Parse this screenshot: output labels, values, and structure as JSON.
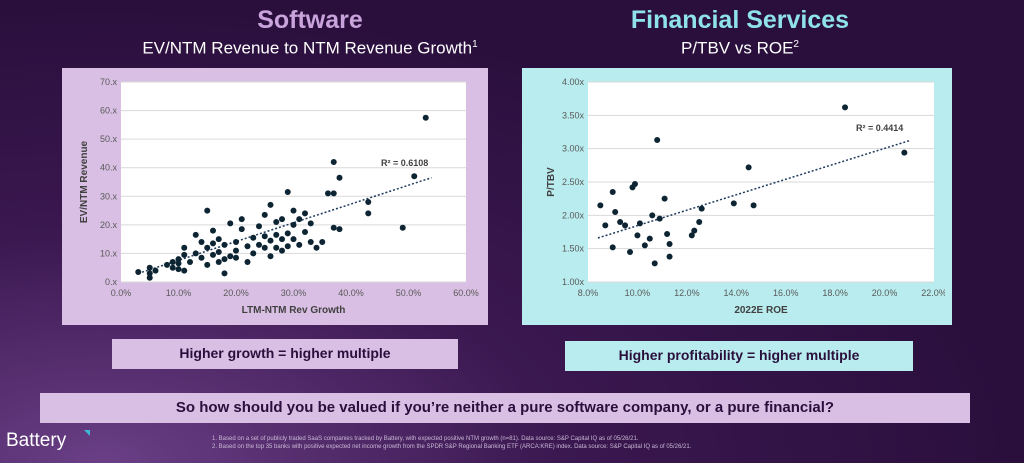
{
  "software": {
    "title": "Software",
    "subtitle": "EV/NTM Revenue to NTM Revenue Growth",
    "footnote_mark": "1",
    "callout": "Higher growth = higher multiple"
  },
  "financial": {
    "title": "Financial Services",
    "subtitle": "P/TBV vs ROE",
    "footnote_mark": "2",
    "callout": "Higher profitability = higher multiple"
  },
  "question": "So how should you be valued if you’re neither a pure software company, or a pure financial?",
  "logo": "Battery",
  "footnotes": [
    "1. Based on a set of publicly traded SaaS companies tracked by Battery, with expected positive NTM growth (n=81). Data source: S&P Capital IQ as of 05/26/21.",
    "2. Based on the top 35 banks with positive expected net income growth from the SPDR S&P Regional Banking ETF (ARCA:KRE) index. Data source: S&P Capital IQ as of 05/26/21."
  ],
  "colors": {
    "software_accent": "#c9a3db",
    "financial_accent": "#8fe3e8",
    "background": "#2a0f3d",
    "marker": "#0d2433"
  },
  "chart_data": [
    {
      "type": "scatter",
      "xlabel": "LTM-NTM Rev Growth",
      "ylabel": "EV/NTM Revenue",
      "xlim": [
        0,
        0.6
      ],
      "ylim": [
        0,
        70
      ],
      "xticks": [
        "0.0%",
        "10.0%",
        "20.0%",
        "30.0%",
        "40.0%",
        "50.0%",
        "60.0%"
      ],
      "yticks": [
        "0.x",
        "10.x",
        "20.x",
        "30.x",
        "40.x",
        "50.x",
        "60.x",
        "70.x"
      ],
      "r2_label": "R² = 0.6108",
      "trendline": {
        "x": [
          0.03,
          0.54
        ],
        "y": [
          3.0,
          36.5
        ]
      },
      "grid": true,
      "x": [
        0.03,
        0.05,
        0.05,
        0.05,
        0.06,
        0.08,
        0.09,
        0.09,
        0.1,
        0.1,
        0.1,
        0.11,
        0.11,
        0.11,
        0.12,
        0.13,
        0.13,
        0.14,
        0.14,
        0.15,
        0.15,
        0.15,
        0.16,
        0.16,
        0.16,
        0.17,
        0.17,
        0.17,
        0.18,
        0.18,
        0.18,
        0.19,
        0.19,
        0.2,
        0.2,
        0.2,
        0.21,
        0.21,
        0.22,
        0.22,
        0.23,
        0.23,
        0.24,
        0.24,
        0.25,
        0.25,
        0.25,
        0.26,
        0.26,
        0.26,
        0.27,
        0.27,
        0.27,
        0.28,
        0.28,
        0.28,
        0.29,
        0.29,
        0.29,
        0.3,
        0.3,
        0.3,
        0.31,
        0.31,
        0.32,
        0.32,
        0.33,
        0.33,
        0.34,
        0.35,
        0.36,
        0.37,
        0.37,
        0.37,
        0.38,
        0.38,
        0.43,
        0.43,
        0.49,
        0.51,
        0.53
      ],
      "y": [
        3.5,
        5.0,
        3.0,
        1.5,
        4.0,
        6.0,
        7.0,
        5.0,
        8.0,
        4.5,
        6.5,
        12.0,
        4.0,
        9.5,
        7.0,
        16.5,
        10.0,
        8.5,
        14.0,
        25.0,
        6.0,
        12.0,
        13.5,
        18.0,
        9.5,
        15.0,
        7.0,
        10.5,
        8.0,
        13.0,
        3.0,
        9.0,
        20.5,
        8.5,
        14.0,
        11.0,
        22.0,
        18.5,
        7.0,
        12.5,
        10.0,
        15.5,
        13.0,
        19.5,
        12.0,
        16.0,
        23.5,
        9.0,
        14.5,
        27.0,
        12.0,
        16.5,
        21.0,
        15.0,
        11.0,
        22.0,
        17.0,
        12.5,
        31.5,
        15.0,
        20.0,
        25.0,
        22.0,
        13.0,
        24.0,
        17.5,
        14.0,
        20.5,
        12.0,
        14.0,
        31.0,
        42.0,
        31.0,
        19.0,
        36.5,
        18.5,
        28.0,
        24.0,
        19.0,
        37.0,
        57.5
      ]
    },
    {
      "type": "scatter",
      "xlabel": "2022E ROE",
      "ylabel": "P/TBV",
      "xlim": [
        0.08,
        0.22
      ],
      "ylim": [
        1.0,
        4.0
      ],
      "xticks": [
        "8.0%",
        "10.0%",
        "12.0%",
        "14.0%",
        "16.0%",
        "18.0%",
        "20.0%",
        "22.0%"
      ],
      "yticks": [
        "1.00x",
        "1.50x",
        "2.00x",
        "2.50x",
        "3.00x",
        "3.50x",
        "4.00x"
      ],
      "r2_label": "R² = 0.4414",
      "trendline": {
        "x": [
          0.084,
          0.21
        ],
        "y": [
          1.66,
          3.12
        ]
      },
      "grid": true,
      "x": [
        0.085,
        0.087,
        0.09,
        0.09,
        0.091,
        0.093,
        0.095,
        0.097,
        0.098,
        0.099,
        0.1,
        0.101,
        0.103,
        0.105,
        0.106,
        0.107,
        0.108,
        0.109,
        0.111,
        0.112,
        0.113,
        0.113,
        0.122,
        0.123,
        0.125,
        0.126,
        0.139,
        0.145,
        0.147,
        0.184,
        0.208
      ],
      "y": [
        2.15,
        1.85,
        2.35,
        1.52,
        2.05,
        1.9,
        1.85,
        1.45,
        2.42,
        2.47,
        1.7,
        1.88,
        1.55,
        1.65,
        2.0,
        1.28,
        3.13,
        1.95,
        2.25,
        1.72,
        1.57,
        1.38,
        1.7,
        1.77,
        1.9,
        2.1,
        2.18,
        2.72,
        2.15,
        3.62,
        2.94
      ]
    }
  ]
}
